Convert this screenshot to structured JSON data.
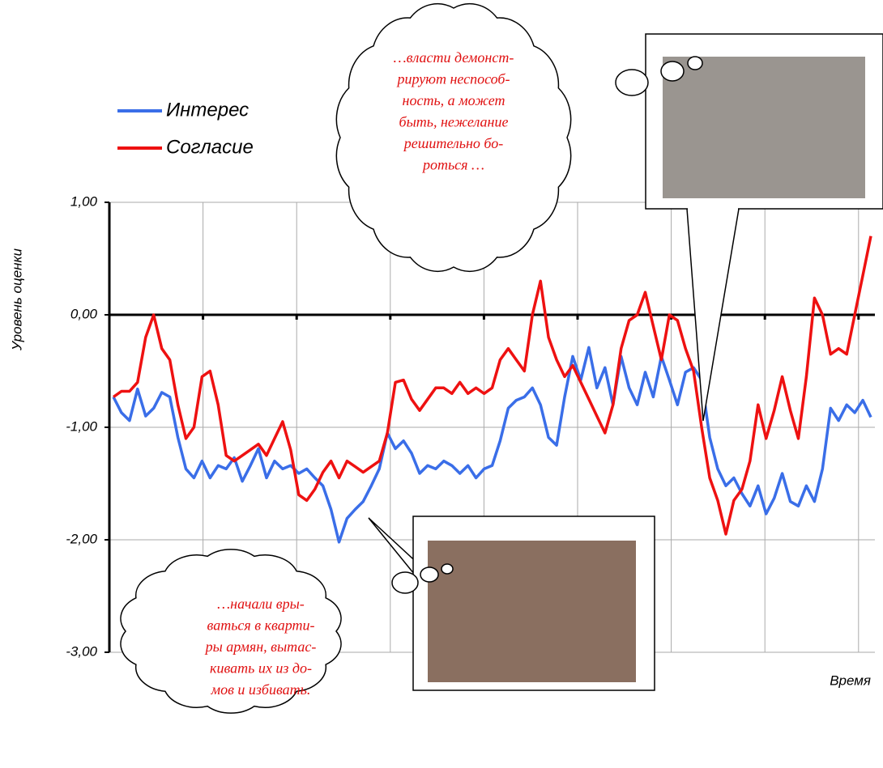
{
  "chart_data": {
    "type": "line",
    "y_label": "Уровень оценки",
    "x_label": "Время",
    "ylim": [
      -3,
      1
    ],
    "yticks": [
      {
        "value": 1,
        "label": "1,00"
      },
      {
        "value": 0,
        "label": "0,00"
      },
      {
        "value": -1,
        "label": "-1,00"
      },
      {
        "value": -2,
        "label": "-2,00"
      },
      {
        "value": -3,
        "label": "-3,00"
      }
    ],
    "grid": true,
    "categories": [
      null,
      null,
      null,
      null,
      null,
      null,
      null,
      null,
      null,
      null,
      null,
      null,
      null,
      null,
      null,
      null,
      null,
      null,
      null,
      null,
      null,
      null,
      null,
      null,
      null,
      null,
      null,
      null,
      null,
      null,
      null,
      null,
      null,
      null,
      null,
      null,
      null,
      null,
      null,
      null,
      null,
      null,
      null,
      null,
      null,
      null,
      null,
      null,
      null,
      null,
      null,
      null,
      null,
      null,
      null,
      null,
      null,
      null,
      null,
      null,
      null,
      null,
      null,
      null,
      null,
      null,
      null,
      null,
      null,
      null,
      null,
      null,
      null,
      null,
      null,
      null,
      null,
      null,
      null,
      null,
      null,
      null,
      null,
      null,
      null,
      null,
      null,
      null,
      null,
      null,
      null,
      null,
      null,
      null,
      null
    ],
    "series": [
      {
        "name": "Интерес",
        "color": "#3a6ee8",
        "values": [
          -0.73,
          -0.87,
          -0.94,
          -0.66,
          -0.9,
          -0.83,
          -0.69,
          -0.73,
          -1.09,
          -1.37,
          -1.45,
          -1.3,
          -1.45,
          -1.34,
          -1.37,
          -1.27,
          -1.48,
          -1.34,
          -1.19,
          -1.45,
          -1.3,
          -1.37,
          -1.34,
          -1.41,
          -1.37,
          -1.45,
          -1.52,
          -1.73,
          -2.02,
          -1.81,
          -1.73,
          -1.66,
          -1.52,
          -1.37,
          -1.05,
          -1.19,
          -1.12,
          -1.23,
          -1.41,
          -1.34,
          -1.37,
          -1.3,
          -1.34,
          -1.41,
          -1.34,
          -1.45,
          -1.37,
          -1.34,
          -1.12,
          -0.83,
          -0.76,
          -0.73,
          -0.65,
          -0.8,
          -1.09,
          -1.16,
          -0.73,
          -0.37,
          -0.58,
          -0.29,
          -0.65,
          -0.47,
          -0.8,
          -0.37,
          -0.65,
          -0.8,
          -0.51,
          -0.73,
          -0.37,
          -0.58,
          -0.8,
          -0.51,
          -0.47,
          -0.58,
          -1.09,
          -1.37,
          -1.52,
          -1.45,
          -1.59,
          -1.7,
          -1.52,
          -1.77,
          -1.63,
          -1.41,
          -1.66,
          -1.7,
          -1.52,
          -1.66,
          -1.37,
          -0.83,
          -0.94,
          -0.8,
          -0.87,
          -0.76,
          -0.91
        ]
      },
      {
        "name": "Согласие",
        "color": "#ee1111",
        "values": [
          -0.73,
          -0.68,
          -0.68,
          -0.6,
          -0.2,
          0,
          -0.3,
          -0.4,
          -0.8,
          -1.1,
          -1.0,
          -0.55,
          -0.5,
          -0.8,
          -1.25,
          -1.3,
          -1.25,
          -1.2,
          -1.15,
          -1.25,
          -1.1,
          -0.95,
          -1.2,
          -1.6,
          -1.65,
          -1.55,
          -1.4,
          -1.3,
          -1.45,
          -1.3,
          -1.35,
          -1.4,
          -1.35,
          -1.3,
          -1.05,
          -0.6,
          -0.58,
          -0.75,
          -0.85,
          -0.75,
          -0.65,
          -0.65,
          -0.7,
          -0.6,
          -0.7,
          -0.65,
          -0.7,
          -0.65,
          -0.4,
          -0.3,
          -0.4,
          -0.5,
          0,
          0.3,
          -0.2,
          -0.4,
          -0.55,
          -0.45,
          -0.6,
          -0.75,
          -0.9,
          -1.05,
          -0.8,
          -0.3,
          -0.05,
          0,
          0.2,
          -0.1,
          -0.4,
          0,
          -0.05,
          -0.3,
          -0.5,
          -1.0,
          -1.45,
          -1.65,
          -1.95,
          -1.65,
          -1.55,
          -1.3,
          -0.8,
          -1.1,
          -0.85,
          -0.55,
          -0.85,
          -1.1,
          -0.55,
          0.15,
          0,
          -0.35,
          -0.3,
          -0.35,
          0,
          0.35,
          0.7
        ]
      }
    ],
    "annotations": [
      {
        "lines": [
          "…власти демонст-",
          "рируют неспособ-",
          "ность, а может",
          "быть, нежелание",
          "решительно бо-",
          "роться …"
        ]
      },
      {
        "lines": [
          "…начали вры-",
          "ваться в кварти-",
          "ры армян, вытас-",
          "кивать их из до-",
          "мов и избивать."
        ]
      }
    ]
  }
}
